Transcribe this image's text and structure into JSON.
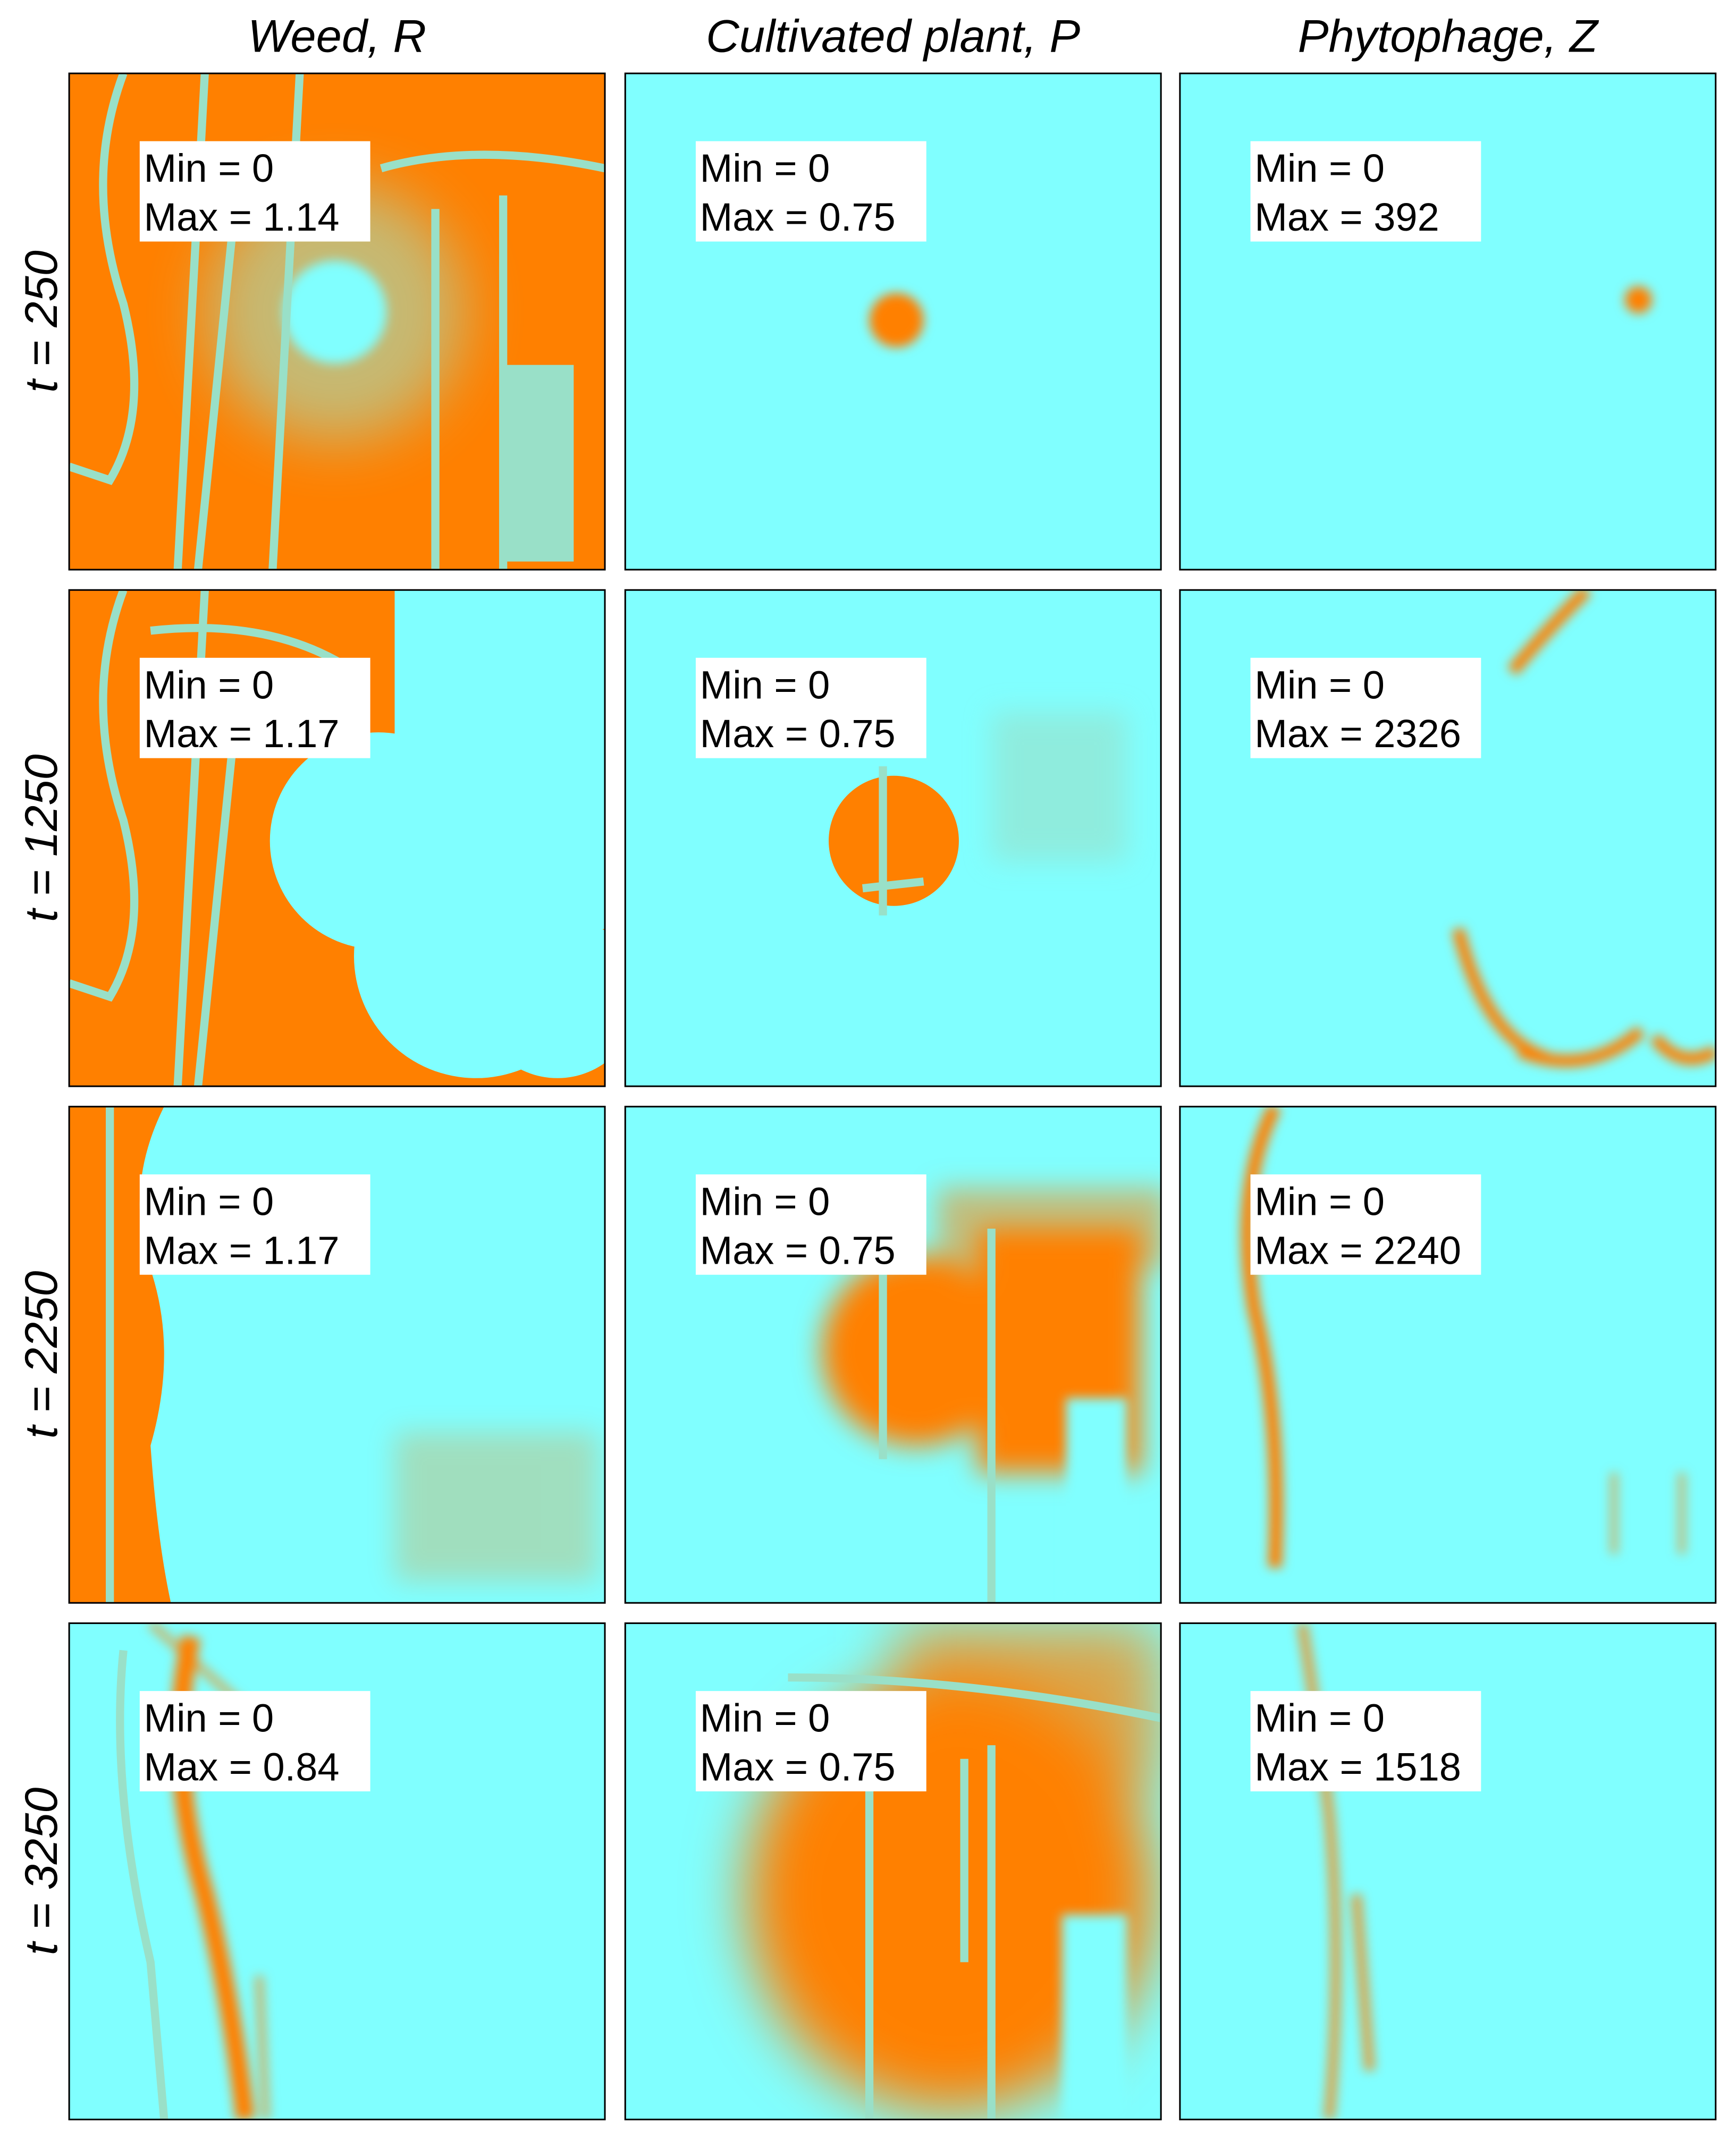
{
  "columns": [
    "Weed, R",
    "Cultivated plant, P",
    "Phytophage, Z"
  ],
  "rows": [
    "t = 250",
    "t = 1250",
    "t = 2250",
    "t = 3250"
  ],
  "panels": [
    [
      {
        "min": "Min = 0",
        "max": "Max = 1.14"
      },
      {
        "min": "Min = 0",
        "max": "Max = 0.75"
      },
      {
        "min": "Min = 0",
        "max": "Max = 392"
      }
    ],
    [
      {
        "min": "Min = 0",
        "max": "Max = 1.17"
      },
      {
        "min": "Min = 0",
        "max": "Max = 0.75"
      },
      {
        "min": "Min = 0",
        "max": "Max = 2326"
      }
    ],
    [
      {
        "min": "Min = 0",
        "max": "Max = 1.17"
      },
      {
        "min": "Min = 0",
        "max": "Max = 0.75"
      },
      {
        "min": "Min = 0",
        "max": "Max = 2240"
      }
    ],
    [
      {
        "min": "Min = 0",
        "max": "Max = 0.84"
      },
      {
        "min": "Min = 0",
        "max": "Max = 0.75"
      },
      {
        "min": "Min = 0",
        "max": "Max = 1518"
      }
    ]
  ]
}
